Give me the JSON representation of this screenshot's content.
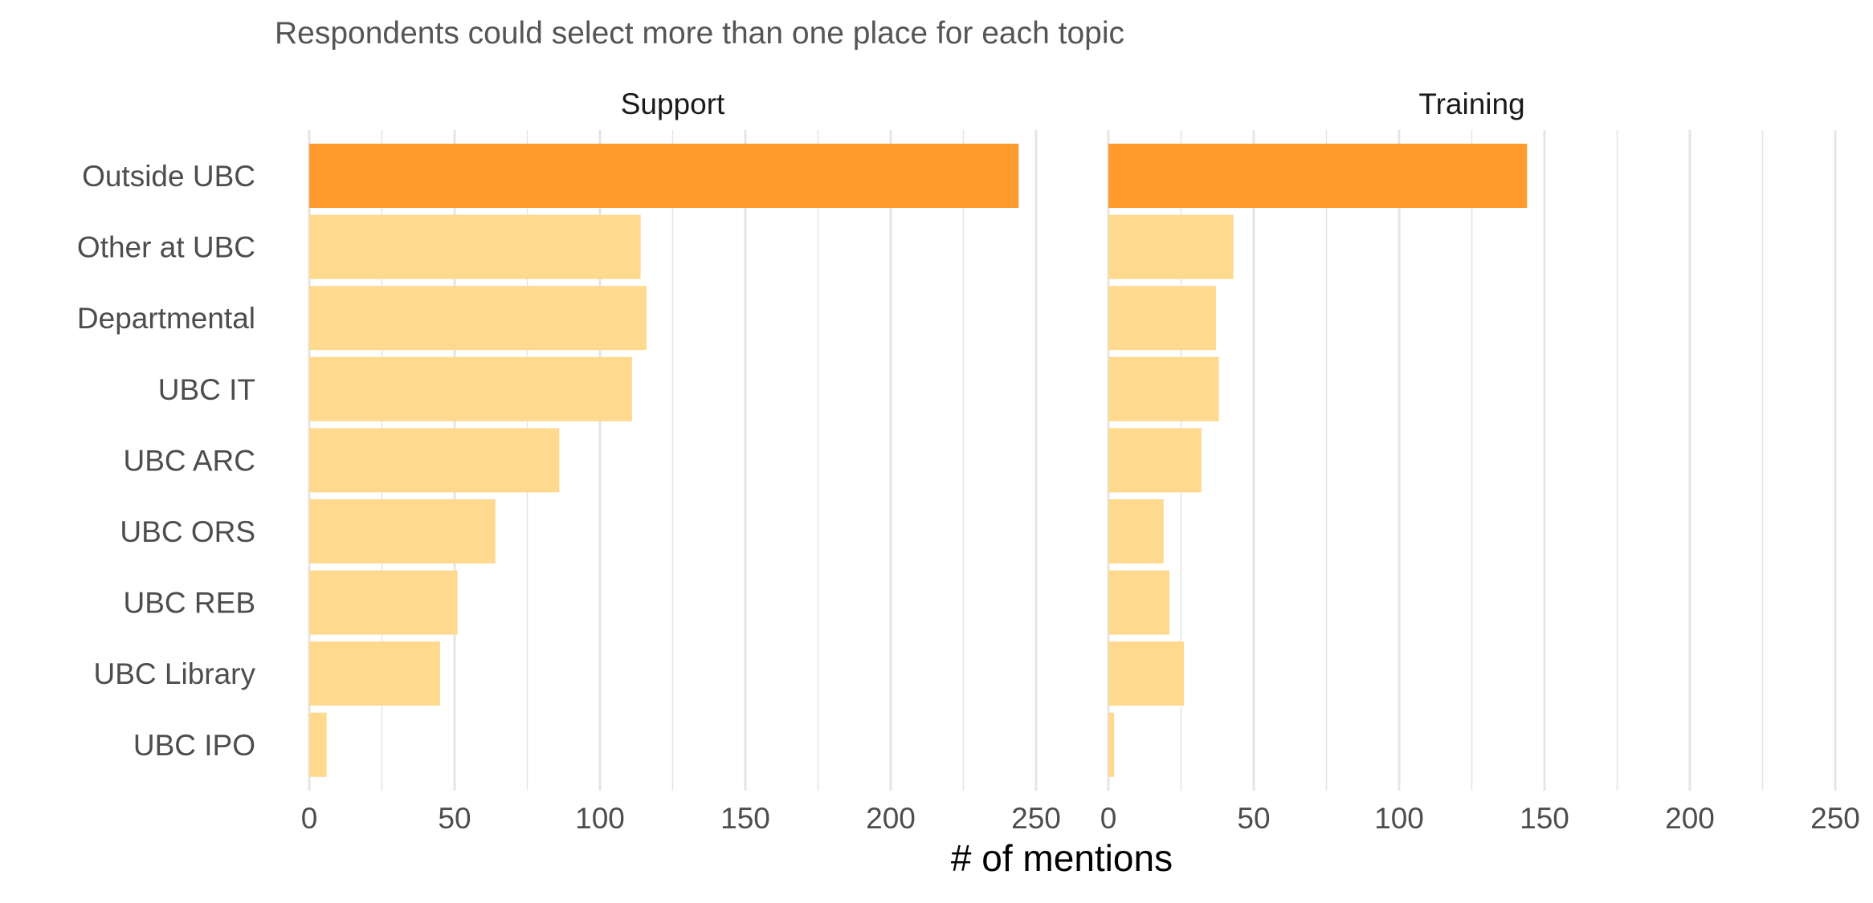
{
  "chart_data": {
    "type": "bar",
    "orientation": "horizontal",
    "subtitle": "Respondents could select more than one place for each topic",
    "xlabel": "# of mentions",
    "ylabel": "",
    "xlim": [
      0,
      250
    ],
    "xticks": [
      0,
      50,
      100,
      150,
      200,
      250
    ],
    "grid": true,
    "categories": [
      "Outside UBC",
      "Other at UBC",
      "Departmental",
      "UBC IT",
      "UBC ARC",
      "UBC ORS",
      "UBC REB",
      "UBC Library",
      "UBC IPO"
    ],
    "highlight_category": "Outside UBC",
    "colors": {
      "highlight": "#FE9A2E",
      "base": "#FED98E",
      "grid": "#E5E5E5"
    },
    "panels": [
      {
        "name": "Support",
        "values": [
          244,
          114,
          116,
          111,
          86,
          64,
          51,
          45,
          6
        ]
      },
      {
        "name": "Training",
        "values": [
          144,
          43,
          37,
          38,
          32,
          19,
          21,
          26,
          2
        ]
      }
    ]
  }
}
